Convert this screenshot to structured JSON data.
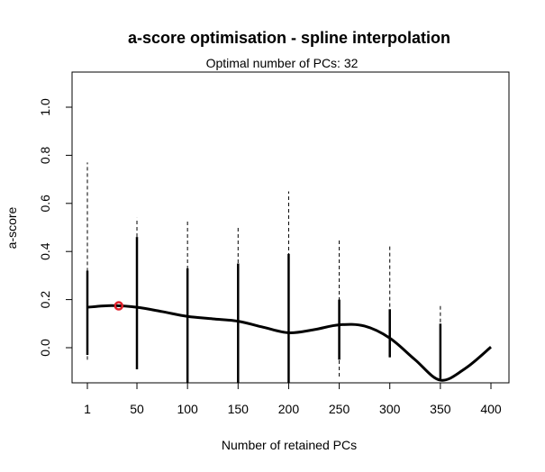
{
  "chart_data": {
    "type": "line",
    "title": "a-score optimisation - spline interpolation",
    "subtitle": "Optimal number of PCs: 32",
    "xlabel": "Number of retained PCs",
    "ylabel": "a-score",
    "xlim": [
      1,
      400
    ],
    "ylim": [
      -0.15,
      1.15
    ],
    "x_ticks": [
      1,
      50,
      100,
      150,
      200,
      250,
      300,
      350,
      400
    ],
    "x_tick_labels": [
      "1",
      "50",
      "100",
      "150",
      "200",
      "250",
      "300",
      "350",
      "400"
    ],
    "y_ticks": [
      0.0,
      0.2,
      0.4,
      0.6,
      0.8,
      1.0
    ],
    "y_tick_labels": [
      "0.0",
      "0.2",
      "0.4",
      "0.6",
      "0.8",
      "1.0"
    ],
    "grid": false,
    "colors": {
      "curve": "#000000",
      "optimum": "#e0202a",
      "bars": "#000000"
    },
    "ranges": [
      {
        "x": 1,
        "min": -0.05,
        "q_low": -0.03,
        "q_high": 0.32,
        "max": 0.77
      },
      {
        "x": 50,
        "min": -0.09,
        "q_low": -0.09,
        "q_high": 0.46,
        "max": 0.54
      },
      {
        "x": 100,
        "min": -0.15,
        "q_low": -0.15,
        "q_high": 0.33,
        "max": 0.53
      },
      {
        "x": 150,
        "min": -0.15,
        "q_low": -0.15,
        "q_high": 0.35,
        "max": 0.5
      },
      {
        "x": 200,
        "min": -0.15,
        "q_low": -0.15,
        "q_high": 0.39,
        "max": 0.65
      },
      {
        "x": 250,
        "min": -0.12,
        "q_low": -0.05,
        "q_high": 0.2,
        "max": 0.45
      },
      {
        "x": 300,
        "min": -0.04,
        "q_low": -0.04,
        "q_high": 0.16,
        "max": 0.43
      },
      {
        "x": 350,
        "min": -0.13,
        "q_low": -0.13,
        "q_high": 0.1,
        "max": 0.18
      }
    ],
    "spline": {
      "x": [
        1,
        25,
        50,
        75,
        100,
        125,
        150,
        175,
        200,
        225,
        250,
        275,
        300,
        325,
        350,
        375,
        400
      ],
      "y": [
        0.168,
        0.175,
        0.168,
        0.15,
        0.13,
        0.12,
        0.11,
        0.085,
        0.062,
        0.075,
        0.095,
        0.09,
        0.04,
        -0.05,
        -0.135,
        -0.085,
        0.003
      ]
    },
    "optimum": {
      "x": 32,
      "y": 0.174
    }
  }
}
